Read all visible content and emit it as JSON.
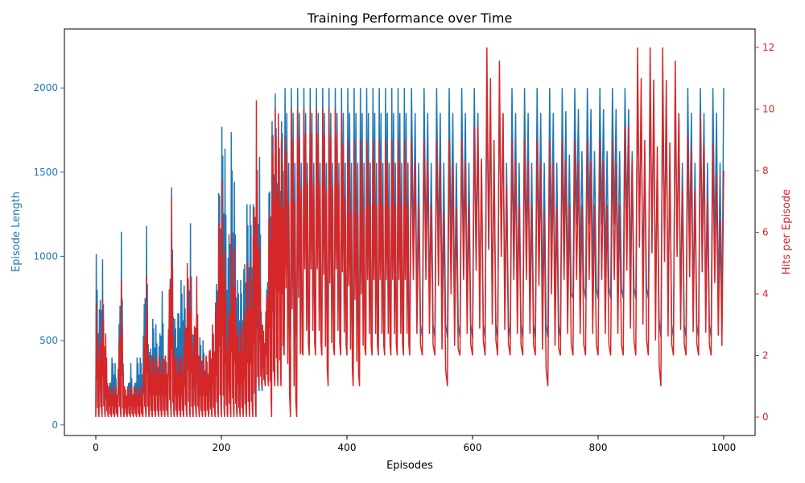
{
  "chart_data": {
    "type": "line",
    "title": "Training Performance over Time",
    "xlabel": "Episodes",
    "ylabel_left": "Episode Length",
    "ylabel_right": "Hits per Episode",
    "xlim": [
      -50,
      1050
    ],
    "ylim_left": [
      -63,
      2350
    ],
    "ylim_right": [
      -0.6,
      12.6
    ],
    "x_ticks": [
      0,
      200,
      400,
      600,
      800,
      1000
    ],
    "y_left_ticks": [
      0,
      500,
      1000,
      1500,
      2000
    ],
    "y_right_ticks": [
      0,
      2,
      4,
      6,
      8,
      10,
      12
    ],
    "grid": false,
    "colors": {
      "episode_length": "#1f77b4",
      "hits": "#d62728"
    },
    "series": [
      {
        "axis": "left",
        "color": "#1f77b4",
        "x": [
          0,
          5,
          10,
          15,
          20,
          25,
          30,
          35,
          40,
          45,
          50,
          55,
          60,
          65,
          70,
          75,
          80,
          85,
          90,
          95,
          100,
          105,
          110,
          115,
          120,
          125,
          130,
          135,
          140,
          145,
          150,
          155,
          160,
          165,
          170,
          175,
          180,
          185,
          190,
          195,
          200,
          205,
          210,
          215,
          220,
          225,
          230,
          235,
          240,
          245,
          250,
          255,
          260,
          265,
          270,
          275,
          280,
          285,
          290,
          295,
          300,
          310,
          320,
          330,
          340,
          350,
          360,
          370,
          380,
          390,
          400,
          410,
          420,
          430,
          440,
          450,
          460,
          470,
          480,
          490,
          500,
          520,
          540,
          560,
          580,
          600,
          620,
          640,
          660,
          680,
          700,
          720,
          740,
          760,
          780,
          800,
          820,
          840,
          860,
          880,
          900,
          920,
          940,
          960,
          980,
          1000
        ],
        "y_low": [
          60,
          60,
          60,
          60,
          60,
          60,
          60,
          60,
          60,
          60,
          60,
          60,
          60,
          60,
          60,
          60,
          60,
          60,
          60,
          60,
          60,
          60,
          60,
          60,
          60,
          60,
          60,
          60,
          60,
          60,
          60,
          60,
          60,
          60,
          60,
          60,
          60,
          60,
          60,
          60,
          60,
          60,
          60,
          60,
          60,
          60,
          60,
          60,
          60,
          60,
          60,
          60,
          200,
          200,
          300,
          300,
          300,
          500,
          500,
          500,
          520,
          520,
          520,
          520,
          520,
          520,
          520,
          520,
          520,
          520,
          520,
          520,
          520,
          520,
          520,
          520,
          520,
          520,
          520,
          520,
          520,
          520,
          520,
          520,
          520,
          520,
          520,
          520,
          520,
          520,
          520,
          520,
          520,
          750,
          750,
          750,
          750,
          750,
          750,
          750,
          520,
          520,
          520,
          520,
          520,
          520
        ],
        "y_high": [
          1080,
          620,
          1080,
          400,
          170,
          400,
          400,
          170,
          1310,
          170,
          170,
          400,
          170,
          400,
          400,
          400,
          1310,
          400,
          630,
          630,
          400,
          860,
          400,
          400,
          1540,
          630,
          630,
          860,
          860,
          630,
          1310,
          520,
          630,
          520,
          520,
          400,
          400,
          520,
          630,
          1310,
          1770,
          1770,
          860,
          1770,
          1540,
          860,
          860,
          860,
          1310,
          1310,
          1310,
          1310,
          1770,
          520,
          520,
          1310,
          1770,
          2000,
          1770,
          1770,
          2000,
          2000,
          2000,
          2000,
          2000,
          2000,
          2000,
          2000,
          2000,
          2000,
          2000,
          2000,
          2000,
          2000,
          2000,
          2000,
          2000,
          2000,
          2000,
          2000,
          2000,
          2000,
          2000,
          2000,
          2000,
          2000,
          2000,
          2000,
          2000,
          2000,
          2000,
          2000,
          2000,
          2000,
          2000,
          2000,
          2000,
          2000,
          2000,
          2000,
          2000,
          2000,
          2000,
          2000,
          2000,
          2000
        ]
      },
      {
        "axis": "right",
        "color": "#d62728",
        "x": [
          0,
          5,
          10,
          15,
          20,
          25,
          30,
          35,
          40,
          45,
          50,
          55,
          60,
          65,
          70,
          75,
          80,
          85,
          90,
          95,
          100,
          105,
          110,
          115,
          120,
          125,
          130,
          135,
          140,
          145,
          150,
          155,
          160,
          165,
          170,
          175,
          180,
          185,
          190,
          195,
          200,
          205,
          210,
          215,
          220,
          225,
          230,
          235,
          240,
          245,
          250,
          255,
          260,
          265,
          270,
          275,
          280,
          285,
          290,
          295,
          300,
          310,
          320,
          330,
          340,
          350,
          360,
          370,
          380,
          390,
          400,
          410,
          420,
          430,
          440,
          450,
          460,
          470,
          480,
          490,
          500,
          520,
          540,
          560,
          580,
          600,
          620,
          640,
          660,
          680,
          700,
          720,
          740,
          760,
          780,
          800,
          820,
          840,
          860,
          880,
          900,
          920,
          940,
          960,
          980,
          1000
        ],
        "y_low": [
          0,
          0,
          0,
          0,
          0,
          0,
          0,
          0,
          0,
          0,
          0,
          0,
          0,
          0,
          0,
          0,
          0,
          0,
          0,
          0,
          0,
          0,
          0,
          0,
          0,
          0,
          0,
          0,
          0,
          0,
          0,
          0,
          0,
          0,
          0,
          0,
          0,
          0,
          0,
          0,
          0,
          0,
          0,
          0,
          0,
          0,
          0,
          0,
          0,
          0,
          0,
          0,
          1,
          1,
          1,
          1,
          0,
          1,
          1,
          1,
          2,
          0,
          0,
          2,
          2,
          2,
          2,
          1,
          2,
          2,
          2,
          1,
          1,
          2,
          2,
          2,
          2,
          2,
          2,
          2,
          2,
          2,
          2,
          1,
          2,
          2,
          2,
          2,
          2,
          2,
          2,
          1,
          2,
          2,
          2,
          2,
          2,
          2,
          2,
          2,
          1,
          2,
          2,
          2,
          2,
          2
        ],
        "y_high": [
          4,
          2,
          4,
          3,
          1,
          1,
          1,
          1,
          5,
          1,
          1,
          1,
          1,
          1,
          1,
          1,
          5,
          2,
          2,
          2,
          2,
          2,
          2,
          2,
          8,
          2,
          2,
          2,
          2,
          5,
          5,
          2,
          5,
          2,
          2,
          2,
          2,
          3,
          3,
          6,
          8,
          6,
          2,
          6,
          6,
          3,
          3,
          3,
          5,
          5,
          5,
          11,
          6,
          3,
          3,
          6,
          9,
          10,
          10,
          9,
          9,
          10,
          10,
          10,
          10,
          10,
          10,
          10,
          10,
          10,
          9,
          9,
          9,
          9,
          9,
          9,
          9,
          9,
          9,
          9,
          9,
          9,
          9,
          9,
          9,
          9,
          12,
          12,
          9,
          9,
          9,
          9,
          9,
          9,
          9,
          9,
          9,
          9,
          12,
          12,
          12,
          12,
          9,
          10,
          9,
          8
        ]
      }
    ]
  }
}
